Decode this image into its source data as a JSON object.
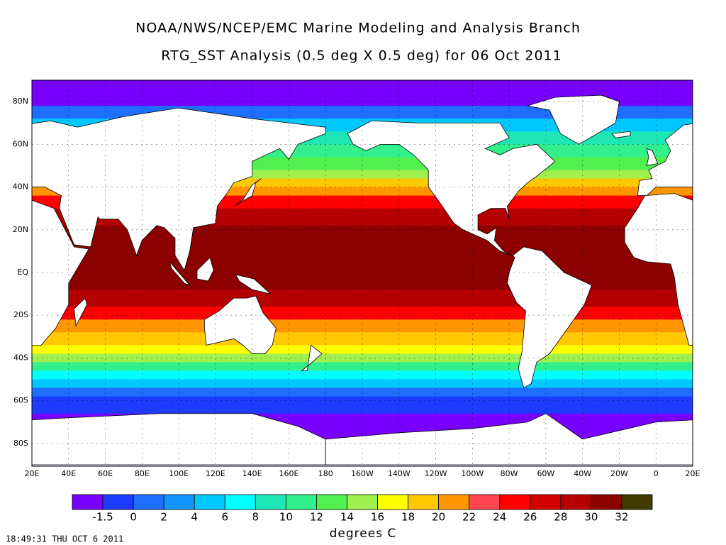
{
  "header": {
    "title": "NOAA/NWS/NCEP/EMC Marine Modeling and Analysis Branch",
    "subtitle": "RTG_SST Analysis (0.5 deg X 0.5 deg) for 06 Oct 2011"
  },
  "map": {
    "lat_labels": [
      "80N",
      "60N",
      "40N",
      "20N",
      "EQ",
      "20S",
      "40S",
      "60S",
      "80S"
    ],
    "lon_labels": [
      "20E",
      "40E",
      "60E",
      "80E",
      "100E",
      "120E",
      "140E",
      "160E",
      "180",
      "160W",
      "140W",
      "120W",
      "100W",
      "80W",
      "60W",
      "40W",
      "20W",
      "0",
      "20E"
    ]
  },
  "colorbar": {
    "labels": [
      "-1.5",
      "0",
      "2",
      "4",
      "6",
      "8",
      "10",
      "12",
      "14",
      "16",
      "18",
      "20",
      "22",
      "24",
      "26",
      "28",
      "30",
      "32"
    ],
    "colors": [
      "#7800ff",
      "#1e3cff",
      "#1e6eff",
      "#1496ff",
      "#00c8ff",
      "#00ffff",
      "#1ee6b4",
      "#32f08c",
      "#50f050",
      "#a0f050",
      "#ffff00",
      "#ffc800",
      "#ff9600",
      "#ff4650",
      "#ff0000",
      "#d20000",
      "#b40000",
      "#8c0000",
      "#403c00"
    ],
    "units": "degrees C"
  },
  "timestamp": "18:49:31  THU OCT 6 2011"
}
